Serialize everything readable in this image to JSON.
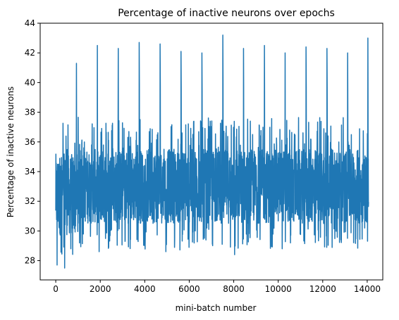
{
  "chart_data": {
    "type": "line",
    "title": "Percentage of inactive neurons over epochs",
    "xlabel": "mini-batch number",
    "ylabel": "Percentage of inactive neurons",
    "xlim": [
      -700,
      14700
    ],
    "ylim": [
      26.7,
      44.0
    ],
    "xticks": [
      0,
      2000,
      4000,
      6000,
      8000,
      10000,
      12000,
      14000
    ],
    "yticks": [
      28,
      30,
      32,
      34,
      36,
      38,
      40,
      42,
      44
    ],
    "grid": false,
    "color": "#1f77b4",
    "series": [
      {
        "name": "",
        "x_start": 0,
        "x_end": 14060,
        "n_points": 2200,
        "band_lower": 30.5,
        "band_upper": 35.5,
        "spikes": [
          {
            "x": 930,
            "y": 41.3
          },
          {
            "x": 1870,
            "y": 42.5
          },
          {
            "x": 2810,
            "y": 42.3
          },
          {
            "x": 3750,
            "y": 42.7
          },
          {
            "x": 4690,
            "y": 42.6
          },
          {
            "x": 5630,
            "y": 42.1
          },
          {
            "x": 6570,
            "y": 42.0
          },
          {
            "x": 7510,
            "y": 43.2
          },
          {
            "x": 8440,
            "y": 42.3
          },
          {
            "x": 9380,
            "y": 42.5
          },
          {
            "x": 10310,
            "y": 42.0
          },
          {
            "x": 11250,
            "y": 42.4
          },
          {
            "x": 12190,
            "y": 42.3
          },
          {
            "x": 13120,
            "y": 42.0
          },
          {
            "x": 14030,
            "y": 43.0
          }
        ],
        "minima": [
          {
            "x": 60,
            "y": 27.7
          },
          {
            "x": 400,
            "y": 27.5
          },
          {
            "x": 1950,
            "y": 28.6
          },
          {
            "x": 4950,
            "y": 28.6
          },
          {
            "x": 8040,
            "y": 28.4
          }
        ]
      }
    ]
  }
}
